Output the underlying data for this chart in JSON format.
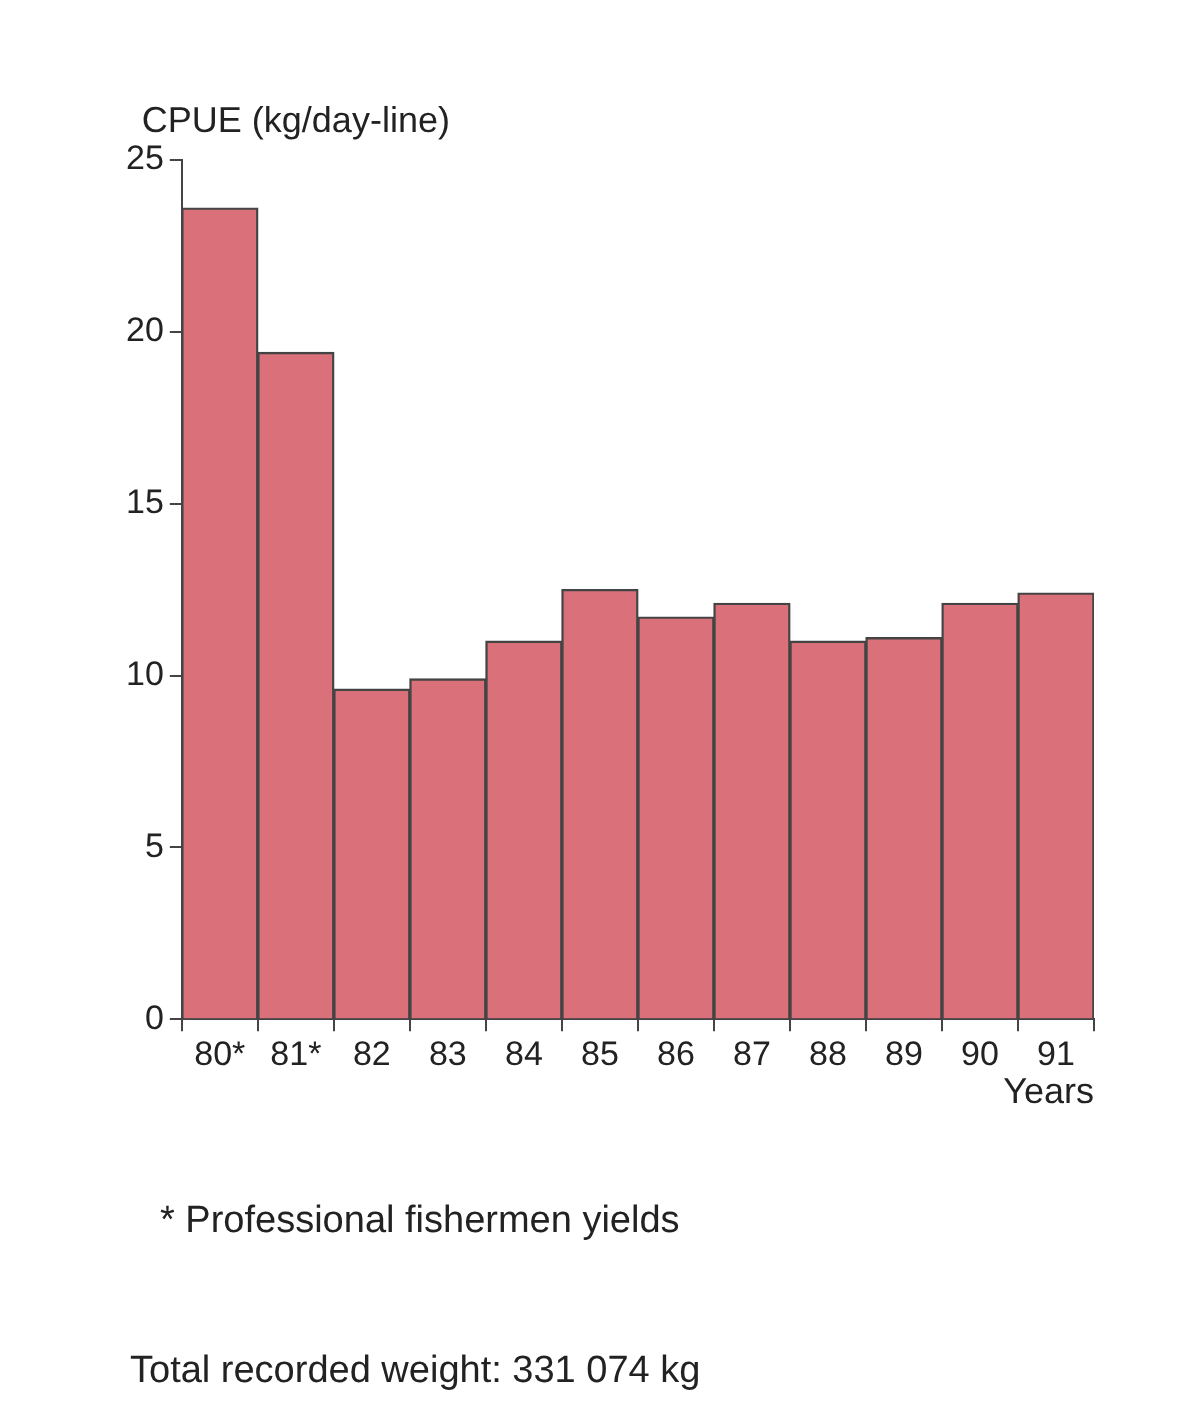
{
  "chart_data": {
    "type": "bar",
    "ylabel": "CPUE (kg/day-line)",
    "xlabel": "Years",
    "categories": [
      "80*",
      "81*",
      "82",
      "83",
      "84",
      "85",
      "86",
      "87",
      "88",
      "89",
      "90",
      "91"
    ],
    "values": [
      23.6,
      19.4,
      9.6,
      9.9,
      11.0,
      12.5,
      11.7,
      12.1,
      11.0,
      11.1,
      12.1,
      12.4
    ],
    "color": "#d9707a",
    "ylim": [
      0,
      25
    ],
    "yticks": [
      0,
      5,
      10,
      15,
      20,
      25
    ],
    "grid": false,
    "legend": false,
    "annotations": [
      "* Professional fishermen yields",
      "Total recorded weight: 331 074 kg"
    ]
  }
}
